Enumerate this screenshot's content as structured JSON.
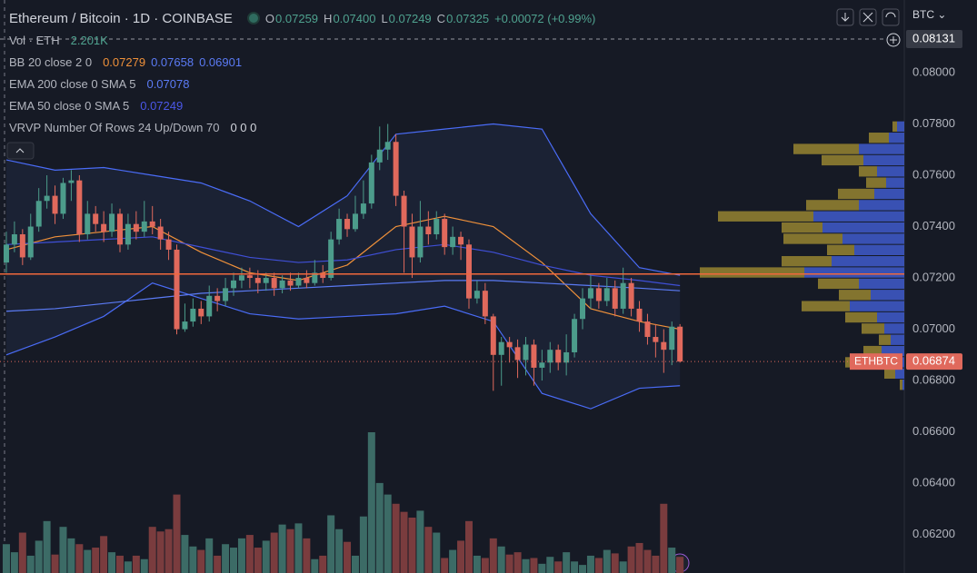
{
  "chart_data": {
    "type": "candlestick",
    "title": "Ethereum / Bitcoin · 1D · COINBASE",
    "ohlc": [
      {
        "label": "O",
        "value": "0.07259"
      },
      {
        "label": "H",
        "value": "0.07400"
      },
      {
        "label": "L",
        "value": "0.07249"
      },
      {
        "label": "C",
        "value": "0.07325"
      }
    ],
    "change": "+0.00072 (+0.99%)",
    "volume_legend": {
      "label": "Vol · ETH",
      "value": "2.201K"
    },
    "indicators": [
      {
        "label": "BB 20 close 2 0",
        "readouts": [
          "0.07279",
          "0.07658",
          "0.06901"
        ],
        "colors": [
          "#f0913a",
          "#5b7bf5",
          "#5b7bf5"
        ]
      },
      {
        "label": "EMA 200 close 0 SMA 5",
        "readouts": [
          "0.07078"
        ],
        "colors": [
          "#5b7bf5"
        ]
      },
      {
        "label": "EMA 50 close 0 SMA 5",
        "readouts": [
          "0.07249"
        ],
        "colors": [
          "#4b57e8"
        ]
      },
      {
        "label": "VRVP Number Of Rows 24 Up/Down 70",
        "readouts": [
          "0 0 0"
        ],
        "colors": [
          "#d1d4dc"
        ]
      }
    ],
    "currency": "BTC",
    "xlim": [
      -0.78,
      110.64
    ],
    "ylim": [
      0.0605,
      0.08283
    ],
    "yticks": [
      {
        "value": 0.08,
        "label": "0.08000"
      },
      {
        "value": 0.078,
        "label": "0.07800"
      },
      {
        "value": 0.076,
        "label": "0.07600"
      },
      {
        "value": 0.074,
        "label": "0.07400"
      },
      {
        "value": 0.072,
        "label": "0.07200"
      },
      {
        "value": 0.07,
        "label": "0.07000"
      },
      {
        "value": 0.068,
        "label": "0.06800"
      },
      {
        "value": 0.066,
        "label": "0.06600"
      },
      {
        "value": 0.064,
        "label": "0.06400"
      },
      {
        "value": 0.062,
        "label": "0.06200"
      }
    ],
    "candles": [
      [
        0.0726,
        0.0738,
        0.0722,
        0.0733
      ],
      [
        0.0733,
        0.0742,
        0.073,
        0.0737
      ],
      [
        0.0737,
        0.0739,
        0.0725,
        0.0728
      ],
      [
        0.0728,
        0.0745,
        0.0727,
        0.074
      ],
      [
        0.074,
        0.0755,
        0.0738,
        0.075
      ],
      [
        0.075,
        0.076,
        0.0747,
        0.0752
      ],
      [
        0.0752,
        0.0756,
        0.0741,
        0.0745
      ],
      [
        0.0745,
        0.0759,
        0.0743,
        0.0757
      ],
      [
        0.0757,
        0.0762,
        0.075,
        0.0758
      ],
      [
        0.0758,
        0.076,
        0.0734,
        0.0737
      ],
      [
        0.0737,
        0.075,
        0.0735,
        0.0745
      ],
      [
        0.0745,
        0.0748,
        0.0738,
        0.0741
      ],
      [
        0.0741,
        0.0746,
        0.0734,
        0.0738
      ],
      [
        0.0738,
        0.0749,
        0.0736,
        0.0745
      ],
      [
        0.0745,
        0.0747,
        0.073,
        0.0733
      ],
      [
        0.0733,
        0.0745,
        0.0731,
        0.0741
      ],
      [
        0.0741,
        0.0746,
        0.0735,
        0.0738
      ],
      [
        0.0738,
        0.075,
        0.0736,
        0.0742
      ],
      [
        0.0742,
        0.0748,
        0.0737,
        0.074
      ],
      [
        0.074,
        0.0743,
        0.0731,
        0.0735
      ],
      [
        0.0735,
        0.0738,
        0.0727,
        0.0731
      ],
      [
        0.0731,
        0.0733,
        0.0698,
        0.07
      ],
      [
        0.07,
        0.071,
        0.0699,
        0.0703
      ],
      [
        0.0703,
        0.0712,
        0.0701,
        0.0708
      ],
      [
        0.0708,
        0.0711,
        0.0702,
        0.0705
      ],
      [
        0.0705,
        0.0717,
        0.0703,
        0.0713
      ],
      [
        0.0713,
        0.0716,
        0.0707,
        0.0711
      ],
      [
        0.0711,
        0.072,
        0.0709,
        0.0716
      ],
      [
        0.0716,
        0.0722,
        0.0713,
        0.0719
      ],
      [
        0.0719,
        0.0724,
        0.0716,
        0.0721
      ],
      [
        0.0721,
        0.0724,
        0.0716,
        0.072
      ],
      [
        0.072,
        0.0723,
        0.0714,
        0.0718
      ],
      [
        0.0718,
        0.0722,
        0.0715,
        0.072
      ],
      [
        0.072,
        0.0722,
        0.0713,
        0.0716
      ],
      [
        0.0716,
        0.0721,
        0.0714,
        0.0719
      ],
      [
        0.0719,
        0.0722,
        0.0715,
        0.0717
      ],
      [
        0.0717,
        0.0722,
        0.0716,
        0.072
      ],
      [
        0.072,
        0.0723,
        0.0716,
        0.0718
      ],
      [
        0.0718,
        0.0727,
        0.0717,
        0.0722
      ],
      [
        0.0722,
        0.0725,
        0.0718,
        0.072
      ],
      [
        0.072,
        0.0738,
        0.0719,
        0.0735
      ],
      [
        0.0735,
        0.0747,
        0.0733,
        0.0743
      ],
      [
        0.0743,
        0.0745,
        0.0736,
        0.0739
      ],
      [
        0.0739,
        0.0752,
        0.0738,
        0.0745
      ],
      [
        0.0745,
        0.0758,
        0.0743,
        0.0749
      ],
      [
        0.0749,
        0.0768,
        0.0747,
        0.0765
      ],
      [
        0.0765,
        0.0779,
        0.0762,
        0.077
      ],
      [
        0.077,
        0.078,
        0.0766,
        0.0773
      ],
      [
        0.0773,
        0.0776,
        0.0748,
        0.0752
      ],
      [
        0.0752,
        0.0754,
        0.0722,
        0.074
      ],
      [
        0.074,
        0.0745,
        0.072,
        0.0728
      ],
      [
        0.0728,
        0.075,
        0.0726,
        0.074
      ],
      [
        0.074,
        0.0746,
        0.0733,
        0.0737
      ],
      [
        0.0737,
        0.0746,
        0.0735,
        0.0743
      ],
      [
        0.0743,
        0.0745,
        0.0729,
        0.0732
      ],
      [
        0.0732,
        0.074,
        0.0729,
        0.0736
      ],
      [
        0.0736,
        0.0738,
        0.0727,
        0.0733
      ],
      [
        0.0733,
        0.0735,
        0.0708,
        0.0712
      ],
      [
        0.0712,
        0.0719,
        0.071,
        0.0715
      ],
      [
        0.0715,
        0.0718,
        0.0702,
        0.0705
      ],
      [
        0.0705,
        0.0706,
        0.0676,
        0.069
      ],
      [
        0.069,
        0.0697,
        0.0678,
        0.0695
      ],
      [
        0.0695,
        0.0697,
        0.0687,
        0.0693
      ],
      [
        0.0693,
        0.0696,
        0.0681,
        0.0688
      ],
      [
        0.0688,
        0.0697,
        0.0682,
        0.0694
      ],
      [
        0.0694,
        0.0696,
        0.0678,
        0.0685
      ],
      [
        0.0685,
        0.0692,
        0.068,
        0.0687
      ],
      [
        0.0687,
        0.0695,
        0.0683,
        0.0692
      ],
      [
        0.0692,
        0.0694,
        0.0684,
        0.0687
      ],
      [
        0.0687,
        0.0698,
        0.0682,
        0.0691
      ],
      [
        0.0691,
        0.0706,
        0.0689,
        0.0704
      ],
      [
        0.0704,
        0.0716,
        0.07,
        0.0712
      ],
      [
        0.0712,
        0.0721,
        0.0708,
        0.0716
      ],
      [
        0.0716,
        0.0718,
        0.0708,
        0.0711
      ],
      [
        0.0711,
        0.072,
        0.0709,
        0.0716
      ],
      [
        0.0716,
        0.0719,
        0.0705,
        0.0708
      ],
      [
        0.0708,
        0.0724,
        0.0706,
        0.0718
      ],
      [
        0.0718,
        0.072,
        0.0705,
        0.0708
      ],
      [
        0.0708,
        0.0711,
        0.0699,
        0.0703
      ],
      [
        0.0703,
        0.0706,
        0.0694,
        0.0697
      ],
      [
        0.0697,
        0.0702,
        0.0689,
        0.0695
      ],
      [
        0.0695,
        0.07,
        0.0683,
        0.0692
      ],
      [
        0.0692,
        0.0703,
        0.0686,
        0.0701
      ],
      [
        0.0701,
        0.0702,
        0.0687,
        0.06874
      ]
    ],
    "up_color": "#4c9c8b",
    "down_color": "#e0695c",
    "volume": [
      2.5,
      1.8,
      3.5,
      1.5,
      2.8,
      4.5,
      1.6,
      4.0,
      3.0,
      2.5,
      2.0,
      2.2,
      3.2,
      1.8,
      1.5,
      1.0,
      1.5,
      1.2,
      4.0,
      3.6,
      3.8,
      6.8,
      3.3,
      2.3,
      2.0,
      3.0,
      1.5,
      2.5,
      2.2,
      3.0,
      3.3,
      2.2,
      2.8,
      3.5,
      4.2,
      3.8,
      4.3,
      3.0,
      1.2,
      1.5,
      5.0,
      3.8,
      2.7,
      1.5,
      4.9,
      12.2,
      7.8,
      6.8,
      6.0,
      5.3,
      4.8,
      5.4,
      4.0,
      3.5,
      1.3,
      2.0,
      2.8,
      4.5,
      1.5,
      1.3,
      3.0,
      2.3,
      1.6,
      1.8,
      1.2,
      1.3,
      0.8,
      1.4,
      1.0,
      1.8,
      1.0,
      0.7,
      1.5,
      1.3,
      2.0,
      1.7,
      1.0,
      2.3,
      2.6,
      2.0,
      1.5,
      6.0,
      2.2,
      1.4
    ],
    "volume_colors": [
      "#3c6b66",
      "#7a3c3e"
    ],
    "band_fill": "#1f2840",
    "lines": [
      {
        "color": "#4a6cf7",
        "x": [
          0,
          6,
          12,
          18,
          24,
          30,
          36,
          42,
          48,
          54,
          60,
          66,
          72,
          78,
          83
        ],
        "values": [
          0.0766,
          0.0762,
          0.0763,
          0.076,
          0.0757,
          0.075,
          0.074,
          0.0752,
          0.0776,
          0.0778,
          0.078,
          0.0778,
          0.0745,
          0.0724,
          0.0721
        ]
      },
      {
        "color": "#4a6cf7",
        "x": [
          0,
          6,
          12,
          18,
          24,
          30,
          36,
          42,
          48,
          54,
          60,
          66,
          72,
          78,
          83
        ],
        "values": [
          0.069,
          0.0697,
          0.0705,
          0.0718,
          0.0712,
          0.0706,
          0.0704,
          0.0705,
          0.0706,
          0.0709,
          0.0703,
          0.0675,
          0.0669,
          0.0677,
          0.0678
        ]
      },
      {
        "color": "#f0913a",
        "x": [
          0,
          6,
          12,
          18,
          24,
          30,
          36,
          42,
          48,
          54,
          60,
          66,
          72,
          78,
          83
        ],
        "values": [
          0.0731,
          0.0736,
          0.0738,
          0.074,
          0.073,
          0.0722,
          0.0719,
          0.0725,
          0.074,
          0.0744,
          0.074,
          0.0726,
          0.0708,
          0.0703,
          0.07
        ]
      },
      {
        "color": "#5b7bf5",
        "x": [
          0,
          6,
          12,
          18,
          24,
          30,
          36,
          42,
          48,
          54,
          60,
          66,
          72,
          78,
          83
        ],
        "values": [
          0.0707,
          0.0708,
          0.071,
          0.0712,
          0.0714,
          0.0715,
          0.0716,
          0.0717,
          0.0718,
          0.0719,
          0.0719,
          0.0718,
          0.0717,
          0.0716,
          0.0715
        ]
      },
      {
        "color": "#3f4fd6",
        "x": [
          0,
          6,
          12,
          18,
          24,
          30,
          36,
          42,
          48,
          54,
          60,
          66,
          72,
          78,
          83
        ],
        "values": [
          0.0733,
          0.0734,
          0.0735,
          0.0736,
          0.0732,
          0.0728,
          0.0726,
          0.0727,
          0.0731,
          0.0733,
          0.073,
          0.0725,
          0.0721,
          0.0719,
          0.0717
        ]
      }
    ],
    "price_line": {
      "value": 0.07215,
      "color": "#f0683c"
    },
    "crosshair": 0.08131,
    "last_price": {
      "label": "ETHBTC",
      "value": 0.06874,
      "color": "#e0695c"
    },
    "volume_profile": {
      "price_range": [
        0.0781,
        0.0676
      ],
      "up": [
        8,
        17,
        50,
        45,
        30,
        20,
        33,
        50,
        100,
        90,
        68,
        55,
        80,
        110,
        50,
        37,
        60,
        30,
        22,
        15,
        25,
        35,
        10,
        2
      ],
      "down": [
        5,
        22,
        72,
        46,
        20,
        22,
        40,
        58,
        105,
        45,
        65,
        30,
        55,
        115,
        45,
        35,
        53,
        35,
        25,
        13,
        20,
        30,
        12,
        3
      ],
      "up_color": "#3f5ccc",
      "down_color": "#a89333"
    }
  }
}
